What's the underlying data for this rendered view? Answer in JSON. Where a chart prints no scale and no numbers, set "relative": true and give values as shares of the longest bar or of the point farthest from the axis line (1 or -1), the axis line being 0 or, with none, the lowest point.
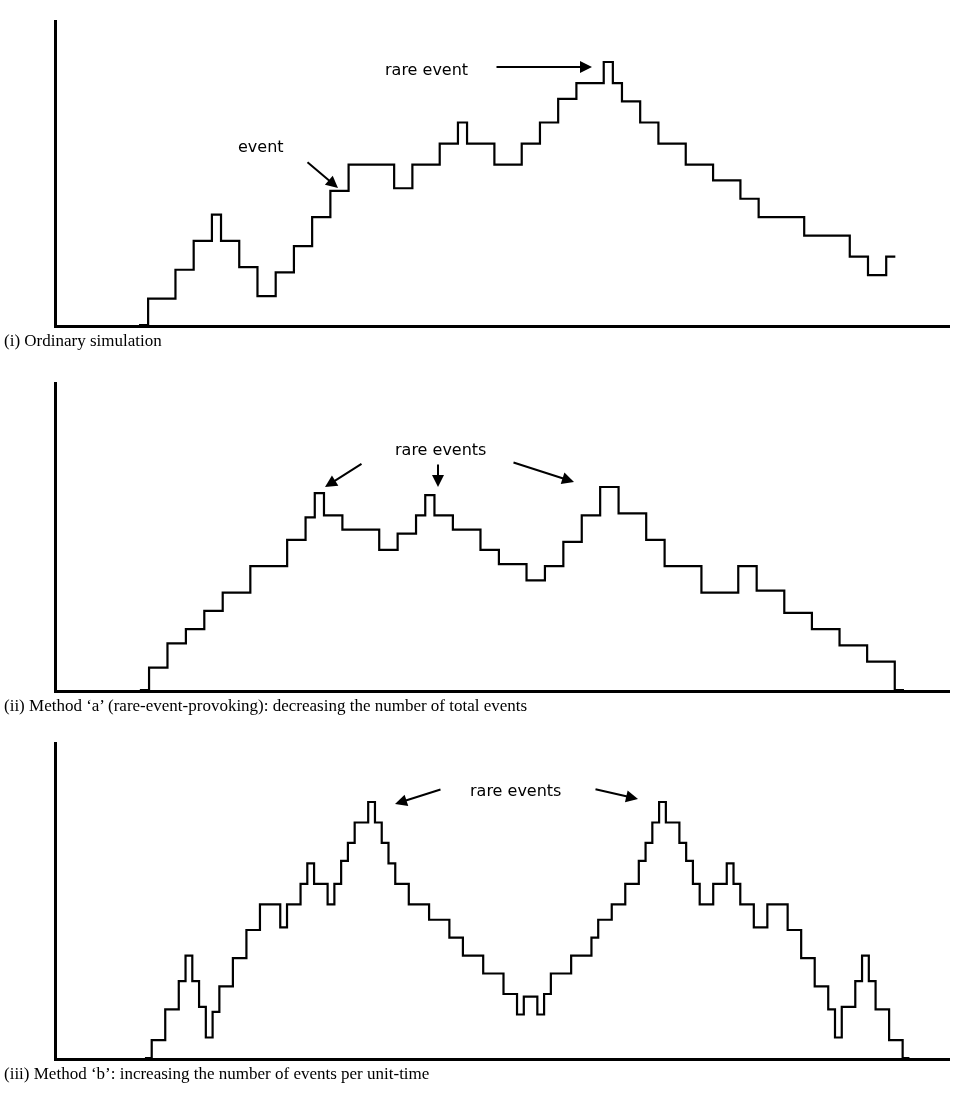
{
  "chart_data": [
    {
      "type": "step",
      "title": "(i) Ordinary simulation",
      "relative": true,
      "annotations": [
        "rare event",
        "event"
      ],
      "marker": "none",
      "line_style": "solid",
      "categories": [
        null,
        null,
        null,
        null,
        null,
        null,
        null,
        null,
        null,
        null,
        null,
        null,
        null,
        null,
        null,
        null,
        null,
        null,
        null,
        null,
        null,
        null,
        null,
        null,
        null,
        null,
        null,
        null,
        null,
        null,
        null,
        null,
        null,
        null,
        null,
        null,
        null,
        null,
        null,
        null,
        null,
        null,
        null,
        null,
        null,
        null,
        null,
        null,
        null,
        null,
        null,
        null,
        null,
        null,
        null,
        null,
        null,
        null,
        null,
        null,
        null,
        null,
        null,
        null,
        null,
        null,
        null,
        null,
        null,
        null,
        null,
        null,
        null,
        null,
        null,
        null,
        null,
        null,
        null,
        null,
        null,
        null,
        null,
        null,
        null,
        null,
        null,
        null,
        null,
        null,
        null,
        null,
        null,
        null,
        null,
        null,
        null,
        null,
        null
      ],
      "series": [
        {
          "color": "#000000",
          "values": [
            null,
            null,
            null,
            null,
            null,
            null,
            null,
            null,
            null,
            0,
            0.1,
            0.1,
            0.1,
            0.21,
            0.21,
            0.32,
            0.32,
            0.42,
            0.32,
            0.32,
            0.22,
            0.22,
            0.11,
            0.11,
            0.2,
            0.2,
            0.3,
            0.3,
            0.41,
            0.41,
            0.51,
            0.51,
            0.61,
            0.61,
            0.61,
            0.61,
            0.61,
            0.52,
            0.52,
            0.61,
            0.61,
            0.61,
            0.69,
            0.69,
            0.77,
            0.69,
            0.69,
            0.69,
            0.61,
            0.61,
            0.61,
            0.69,
            0.69,
            0.77,
            0.77,
            0.86,
            0.86,
            0.92,
            0.92,
            0.92,
            1,
            0.92,
            0.85,
            0.85,
            0.77,
            0.77,
            0.69,
            0.69,
            0.69,
            0.61,
            0.61,
            0.61,
            0.55,
            0.55,
            0.55,
            0.48,
            0.48,
            0.41,
            0.41,
            0.41,
            0.41,
            0.41,
            0.34,
            0.34,
            0.34,
            0.34,
            0.34,
            0.26,
            0.26,
            0.19,
            0.19,
            0.26,
            0.26,
            null,
            null,
            null,
            null,
            null,
            null
          ]
        }
      ]
    },
    {
      "type": "step",
      "title": "(ii) Method ‘a’ (rare-event-provoking): decreasing the number of total events",
      "relative": true,
      "annotations": [
        "rare events"
      ],
      "marker": "none",
      "line_style": "solid",
      "categories": [
        null,
        null,
        null,
        null,
        null,
        null,
        null,
        null,
        null,
        null,
        null,
        null,
        null,
        null,
        null,
        null,
        null,
        null,
        null,
        null,
        null,
        null,
        null,
        null,
        null,
        null,
        null,
        null,
        null,
        null,
        null,
        null,
        null,
        null,
        null,
        null,
        null,
        null,
        null,
        null,
        null,
        null,
        null,
        null,
        null,
        null,
        null,
        null,
        null,
        null,
        null,
        null,
        null,
        null,
        null,
        null,
        null,
        null,
        null,
        null,
        null,
        null,
        null,
        null,
        null,
        null,
        null,
        null,
        null,
        null,
        null,
        null,
        null,
        null,
        null,
        null,
        null,
        null,
        null,
        null,
        null,
        null,
        null,
        null,
        null,
        null,
        null,
        null,
        null,
        null,
        null,
        null,
        null,
        null,
        null,
        null,
        null,
        null
      ],
      "series": [
        {
          "color": "#000000",
          "values": [
            null,
            null,
            null,
            null,
            null,
            null,
            null,
            null,
            null,
            0,
            0.11,
            0.11,
            0.23,
            0.23,
            0.3,
            0.3,
            0.39,
            0.39,
            0.48,
            0.48,
            0.48,
            0.61,
            0.61,
            0.61,
            0.61,
            0.74,
            0.74,
            0.85,
            0.97,
            0.86,
            0.86,
            0.79,
            0.79,
            0.79,
            0.79,
            0.69,
            0.69,
            0.77,
            0.77,
            0.86,
            0.96,
            0.86,
            0.86,
            0.79,
            0.79,
            0.79,
            0.69,
            0.69,
            0.62,
            0.62,
            0.62,
            0.54,
            0.54,
            0.61,
            0.61,
            0.73,
            0.73,
            0.86,
            0.86,
            1,
            1,
            0.87,
            0.87,
            0.87,
            0.74,
            0.74,
            0.61,
            0.61,
            0.61,
            0.61,
            0.48,
            0.48,
            0.48,
            0.48,
            0.61,
            0.61,
            0.49,
            0.49,
            0.49,
            0.38,
            0.38,
            0.38,
            0.3,
            0.3,
            0.3,
            0.22,
            0.22,
            0.22,
            0.14,
            0.14,
            0.14,
            0,
            0,
            null,
            null,
            null,
            null,
            null
          ]
        }
      ]
    },
    {
      "type": "step",
      "title": "(iii) Method ‘b’: increasing the number of events per unit-time",
      "relative": true,
      "annotations": [
        "rare events"
      ],
      "marker": "none",
      "line_style": "solid",
      "categories": [
        null,
        null,
        null,
        null,
        null,
        null,
        null,
        null,
        null,
        null,
        null,
        null,
        null,
        null,
        null,
        null,
        null,
        null,
        null,
        null,
        null,
        null,
        null,
        null,
        null,
        null,
        null,
        null,
        null,
        null,
        null,
        null,
        null,
        null,
        null,
        null,
        null,
        null,
        null,
        null,
        null,
        null,
        null,
        null,
        null,
        null,
        null,
        null,
        null,
        null,
        null,
        null,
        null,
        null,
        null,
        null,
        null,
        null,
        null,
        null,
        null,
        null,
        null,
        null,
        null,
        null,
        null,
        null,
        null,
        null,
        null,
        null,
        null,
        null,
        null,
        null,
        null,
        null,
        null,
        null,
        null,
        null,
        null,
        null,
        null,
        null,
        null,
        null,
        null,
        null,
        null,
        null,
        null,
        null,
        null,
        null,
        null,
        null,
        null,
        null,
        null,
        null,
        null,
        null,
        null,
        null,
        null,
        null,
        null,
        null,
        null,
        null,
        null,
        null,
        null,
        null,
        null,
        null,
        null,
        null,
        null,
        null,
        null,
        null,
        null,
        null,
        null,
        null,
        null,
        null,
        null,
        null,
        null
      ],
      "series": [
        {
          "color": "#000000",
          "values": [
            null,
            null,
            null,
            null,
            null,
            null,
            null,
            null,
            null,
            null,
            null,
            null,
            null,
            0,
            0.07,
            0.07,
            0.19,
            0.19,
            0.3,
            0.4,
            0.3,
            0.2,
            0.08,
            0.18,
            0.28,
            0.28,
            0.39,
            0.39,
            0.5,
            0.5,
            0.6,
            0.6,
            0.6,
            0.51,
            0.6,
            0.6,
            0.68,
            0.76,
            0.68,
            0.68,
            0.6,
            0.68,
            0.77,
            0.84,
            0.92,
            0.92,
            1,
            0.92,
            0.84,
            0.76,
            0.68,
            0.68,
            0.6,
            0.6,
            0.6,
            0.54,
            0.54,
            0.54,
            0.47,
            0.47,
            0.4,
            0.4,
            0.4,
            0.33,
            0.33,
            0.33,
            0.25,
            0.25,
            0.17,
            0.24,
            0.24,
            0.17,
            0.25,
            0.33,
            0.33,
            0.33,
            0.4,
            0.4,
            0.4,
            0.47,
            0.54,
            0.54,
            0.6,
            0.6,
            0.68,
            0.68,
            0.77,
            0.84,
            0.92,
            1,
            0.92,
            0.92,
            0.84,
            0.77,
            0.68,
            0.6,
            0.6,
            0.68,
            0.68,
            0.76,
            0.68,
            0.6,
            0.6,
            0.51,
            0.51,
            0.6,
            0.6,
            0.6,
            0.5,
            0.5,
            0.39,
            0.39,
            0.28,
            0.28,
            0.19,
            0.08,
            0.2,
            0.2,
            0.3,
            0.4,
            0.3,
            0.19,
            0.19,
            0.07,
            0.07,
            0,
            0,
            null,
            null,
            null,
            null,
            null,
            null
          ]
        }
      ]
    }
  ]
}
